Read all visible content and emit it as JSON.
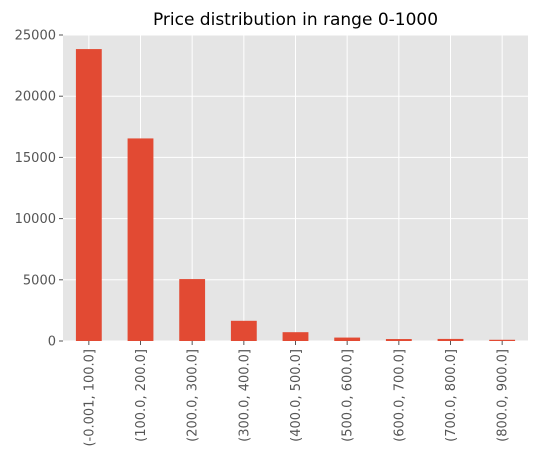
{
  "chart_data": {
    "type": "bar",
    "title": "Price distribution in range 0-1000",
    "xlabel": "",
    "ylabel": "",
    "categories": [
      "(-0.001, 100.0]",
      "(100.0, 200.0]",
      "(200.0, 300.0]",
      "(300.0, 400.0]",
      "(400.0, 500.0]",
      "(500.0, 600.0]",
      "(600.0, 700.0]",
      "(700.0, 800.0]",
      "(800.0, 900.0]"
    ],
    "values": [
      23850,
      16550,
      5060,
      1650,
      720,
      280,
      160,
      170,
      100
    ],
    "ylim": [
      0,
      25000
    ],
    "yticks": [
      0,
      5000,
      10000,
      15000,
      20000,
      25000
    ],
    "grid": true,
    "legend": "none",
    "colors": {
      "bar": "#e24a33",
      "plot_background": "#e5e5e5",
      "grid": "#ffffff",
      "tick_label": "#555555",
      "title": "#000000"
    }
  }
}
